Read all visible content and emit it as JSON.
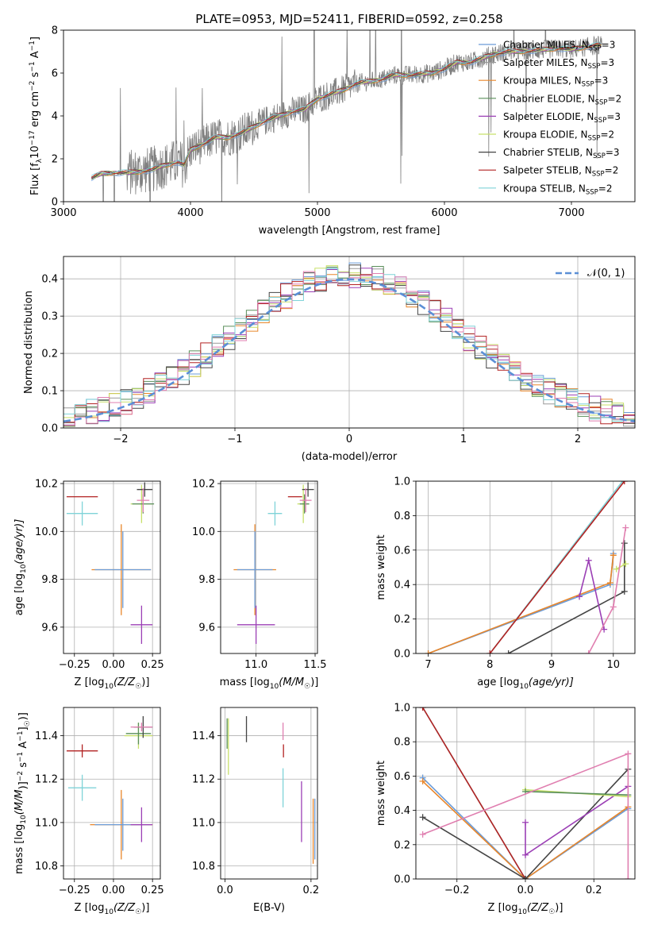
{
  "figure_title": "PLATE=0953, MJD=52411, FIBERID=0592, z=0.258",
  "colors": {
    "chabrier_miles": "#6a9bd8",
    "salpeter_miles": "#999999",
    "kroupa_miles": "#e8862a",
    "chabrier_elodie": "#5a8f5a",
    "salpeter_elodie": "#9b3fb5",
    "kroupa_elodie": "#c8e06a",
    "chabrier_stelib": "#444444",
    "salpeter_stelib": "#b22222",
    "kroupa_stelib": "#7fd3d8",
    "pink": "#e07fb0",
    "data": "#808080",
    "gauss": "#5b8fd6",
    "grid": "#b0b0b0"
  },
  "chart_data": [
    {
      "id": "spectrum",
      "type": "line",
      "title": "PLATE=0953, MJD=52411, FIBERID=0592, z=0.258",
      "xlabel": "wavelength [Angstrom, rest frame]",
      "ylabel": "Flux [f",
      "ylabel_sub": "λ",
      "ylabel_rest": "10",
      "ylabel_exp": "−17",
      "ylabel_end": " erg cm",
      "xlim": [
        3000,
        7500
      ],
      "ylim": [
        0,
        8
      ],
      "xticks": [
        "3000",
        "4000",
        "5000",
        "6000",
        "7000"
      ],
      "yticks": [
        "0",
        "2",
        "4",
        "6",
        "8"
      ],
      "grid": false,
      "legend_position": "top-right",
      "continuum": {
        "x": [
          3220,
          3300,
          3400,
          3500,
          3600,
          3700,
          3800,
          3900,
          3950,
          4000,
          4100,
          4200,
          4300,
          4400,
          4500,
          4600,
          4700,
          4800,
          4900,
          5000,
          5100,
          5200,
          5300,
          5400,
          5500,
          5600,
          5700,
          5800,
          5900,
          6000,
          6100,
          6200,
          6300,
          6400,
          6500,
          6600,
          6700,
          6800,
          6900,
          7000,
          7100,
          7200,
          7240
        ],
        "y": [
          1.1,
          1.3,
          1.35,
          1.35,
          1.4,
          1.5,
          1.7,
          1.85,
          1.7,
          2.4,
          2.7,
          3.0,
          3.0,
          3.2,
          3.5,
          3.8,
          4.0,
          4.2,
          4.3,
          4.8,
          5.0,
          5.2,
          5.5,
          5.6,
          5.7,
          5.9,
          5.9,
          5.95,
          6.0,
          6.2,
          6.5,
          6.5,
          6.7,
          6.9,
          7.0,
          7.0,
          7.05,
          7.1,
          7.15,
          7.1,
          7.2,
          7.3,
          7.3
        ]
      },
      "series": [
        {
          "name": "Chabrier MILES, N",
          "sub": "SSP",
          "suffix": "=3",
          "color_key": "chabrier_miles"
        },
        {
          "name": "Salpeter MILES, N",
          "sub": "SSP",
          "suffix": "=3",
          "color_key": "salpeter_miles"
        },
        {
          "name": "Kroupa MILES, N",
          "sub": "SSP",
          "suffix": "=3",
          "color_key": "kroupa_miles"
        },
        {
          "name": "Chabrier ELODIE, N",
          "sub": "SSP",
          "suffix": "=2",
          "color_key": "chabrier_elodie"
        },
        {
          "name": "Salpeter ELODIE, N",
          "sub": "SSP",
          "suffix": "=3",
          "color_key": "salpeter_elodie"
        },
        {
          "name": "Kroupa ELODIE, N",
          "sub": "SSP",
          "suffix": "=2",
          "color_key": "kroupa_elodie"
        },
        {
          "name": "Chabrier STELIB, N",
          "sub": "SSP",
          "suffix": "=3",
          "color_key": "chabrier_stelib"
        },
        {
          "name": "Salpeter STELIB, N",
          "sub": "SSP",
          "suffix": "=2",
          "color_key": "salpeter_stelib"
        },
        {
          "name": "Kroupa STELIB, N",
          "sub": "SSP",
          "suffix": "=2",
          "color_key": "kroupa_stelib"
        }
      ]
    },
    {
      "id": "residuals",
      "type": "line",
      "xlabel": "(data-model)/error",
      "ylabel": "Normed distribution",
      "xlim": [
        -2.5,
        2.5
      ],
      "ylim": [
        0,
        0.46
      ],
      "xticks": [
        "−2",
        "−1",
        "0",
        "1",
        "2"
      ],
      "yticks": [
        "0.0",
        "0.1",
        "0.2",
        "0.3",
        "0.4"
      ],
      "grid": true,
      "legend_position": "top-right",
      "legend_label": "𝒩(0, 1)",
      "gauss": {
        "mean": 0,
        "sigma": 1
      }
    },
    {
      "id": "age_z",
      "type": "scatter",
      "xlabel": "Z [log",
      "xlabel_sub": "10",
      "xlabel_rest": "(Z/Z",
      "xlabel_sub2": "☉",
      "xlabel_end": ")]",
      "ylabel": "age  [log",
      "ylabel_sub": "10",
      "ylabel_rest": "(age/yr)]",
      "xlim": [
        -0.32,
        0.3
      ],
      "ylim": [
        9.49,
        10.21
      ],
      "xticks": [
        "−0.25",
        "0.00",
        "0.25"
      ],
      "yticks": [
        "9.6",
        "9.8",
        "10.0",
        "10.2"
      ],
      "grid": true,
      "points": [
        {
          "x": -0.2,
          "y": 10.145,
          "xerr": 0.1,
          "yerr": 0.0,
          "color_key": "salpeter_stelib"
        },
        {
          "x": -0.2,
          "y": 10.075,
          "xerr": 0.1,
          "yerr": 0.05,
          "color_key": "kroupa_stelib"
        },
        {
          "x": 0.05,
          "y": 9.84,
          "xerr": 0.19,
          "yerr": 0.19,
          "color_key": "kroupa_miles"
        },
        {
          "x": 0.06,
          "y": 9.84,
          "xerr": 0.18,
          "yerr": 0.16,
          "color_key": "chabrier_miles"
        },
        {
          "x": 0.18,
          "y": 10.115,
          "xerr": 0.07,
          "yerr": 0.08,
          "color_key": "kroupa_elodie"
        },
        {
          "x": 0.19,
          "y": 10.115,
          "xerr": 0.07,
          "yerr": 0.04,
          "color_key": "chabrier_elodie"
        },
        {
          "x": 0.18,
          "y": 9.61,
          "xerr": 0.07,
          "yerr": 0.08,
          "color_key": "salpeter_elodie"
        },
        {
          "x": 0.2,
          "y": 10.175,
          "xerr": 0.05,
          "yerr": 0.03,
          "color_key": "chabrier_stelib"
        },
        {
          "x": 0.19,
          "y": 10.13,
          "xerr": 0.04,
          "yerr": 0.05,
          "color_key": "pink"
        }
      ]
    },
    {
      "id": "age_mass",
      "type": "scatter",
      "xlabel": "mass [log",
      "xlabel_sub": "10",
      "xlabel_rest": "(M/M",
      "xlabel_sub2": "☉",
      "xlabel_end": ")]",
      "xlim": [
        10.7,
        11.52
      ],
      "ylim": [
        9.49,
        10.21
      ],
      "xticks": [
        "11.0",
        "11.5"
      ],
      "yticks": [
        "9.6",
        "9.8",
        "10.0",
        "10.2"
      ],
      "grid": true,
      "points": [
        {
          "x": 11.33,
          "y": 10.145,
          "xerr": 0.06,
          "yerr": 0.0,
          "color_key": "salpeter_stelib"
        },
        {
          "x": 11.16,
          "y": 10.075,
          "xerr": 0.06,
          "yerr": 0.05,
          "color_key": "kroupa_stelib"
        },
        {
          "x": 10.99,
          "y": 9.84,
          "xerr": 0.18,
          "yerr": 0.19,
          "color_key": "kroupa_miles"
        },
        {
          "x": 10.99,
          "y": 9.84,
          "xerr": 0.15,
          "yerr": 0.16,
          "color_key": "chabrier_miles"
        },
        {
          "x": 11.0,
          "y": 9.61,
          "xerr": 0.16,
          "yerr": 0.08,
          "color_key": "salpeter_elodie"
        },
        {
          "x": 11.4,
          "y": 10.115,
          "xerr": 0.05,
          "yerr": 0.08,
          "color_key": "kroupa_elodie"
        },
        {
          "x": 11.41,
          "y": 10.115,
          "xerr": 0.04,
          "yerr": 0.04,
          "color_key": "chabrier_elodie"
        },
        {
          "x": 11.44,
          "y": 10.175,
          "xerr": 0.05,
          "yerr": 0.03,
          "color_key": "chabrier_stelib"
        },
        {
          "x": 11.42,
          "y": 10.13,
          "xerr": 0.05,
          "yerr": 0.05,
          "color_key": "pink"
        }
      ]
    },
    {
      "id": "weight_age",
      "type": "line",
      "xlabel": "age  [log",
      "xlabel_sub": "10",
      "xlabel_rest": "(age/yr)]",
      "ylabel": "mass weight",
      "xlim": [
        6.8,
        10.35
      ],
      "ylim": [
        0,
        1
      ],
      "xticks": [
        "7",
        "8",
        "9",
        "10"
      ],
      "yticks": [
        "0.0",
        "0.2",
        "0.4",
        "0.6",
        "0.8",
        "1.0"
      ],
      "grid": true,
      "series": [
        {
          "color_key": "chabrier_miles",
          "x": [
            7.0,
            9.95,
            10.0
          ],
          "y": [
            0.0,
            0.4,
            0.58
          ]
        },
        {
          "color_key": "kroupa_miles",
          "x": [
            7.0,
            9.95,
            10.0
          ],
          "y": [
            0.0,
            0.41,
            0.57
          ]
        },
        {
          "color_key": "kroupa_stelib",
          "x": [
            8.0,
            10.15
          ],
          "y": [
            0.0,
            1.0
          ]
        },
        {
          "color_key": "salpeter_stelib",
          "x": [
            8.0,
            10.18
          ],
          "y": [
            0.0,
            1.0
          ]
        },
        {
          "color_key": "chabrier_stelib",
          "x": [
            8.3,
            10.18,
            10.18
          ],
          "y": [
            0.0,
            0.36,
            0.64
          ]
        },
        {
          "color_key": "salpeter_elodie",
          "x": [
            9.45,
            9.6,
            9.85
          ],
          "y": [
            0.33,
            0.54,
            0.14
          ]
        },
        {
          "color_key": "kroupa_elodie",
          "x": [
            10.05,
            10.2
          ],
          "y": [
            0.49,
            0.52
          ]
        },
        {
          "color_key": "pink",
          "x": [
            9.6,
            10.0,
            10.2
          ],
          "y": [
            0.0,
            0.27,
            0.73
          ]
        }
      ]
    },
    {
      "id": "mass_z",
      "type": "scatter",
      "xlabel": "Z [log",
      "xlabel_sub": "10",
      "xlabel_rest": "(Z/Z",
      "xlabel_sub2": "☉",
      "xlabel_end": ")]",
      "ylabel": "mass [log",
      "ylabel_sub": "10",
      "ylabel_rest": "(M/M",
      "ylabel_sub2": "☉",
      "ylabel_end": ")]",
      "xlim": [
        -0.32,
        0.3
      ],
      "ylim": [
        10.74,
        11.53
      ],
      "xticks": [
        "−0.25",
        "0.00",
        "0.25"
      ],
      "yticks": [
        "10.8",
        "11.0",
        "11.2",
        "11.4"
      ],
      "grid": true,
      "points": [
        {
          "x": -0.2,
          "y": 11.33,
          "xerr": 0.1,
          "yerr": 0.03,
          "color_key": "salpeter_stelib"
        },
        {
          "x": -0.2,
          "y": 11.16,
          "xerr": 0.09,
          "yerr": 0.06,
          "color_key": "kroupa_stelib"
        },
        {
          "x": 0.05,
          "y": 10.99,
          "xerr": 0.2,
          "yerr": 0.16,
          "color_key": "kroupa_miles"
        },
        {
          "x": 0.06,
          "y": 10.99,
          "xerr": 0.18,
          "yerr": 0.12,
          "color_key": "chabrier_miles"
        },
        {
          "x": 0.18,
          "y": 10.99,
          "xerr": 0.07,
          "yerr": 0.08,
          "color_key": "salpeter_elodie"
        },
        {
          "x": 0.16,
          "y": 11.4,
          "xerr": 0.09,
          "yerr": 0.06,
          "color_key": "kroupa_elodie"
        },
        {
          "x": 0.16,
          "y": 11.41,
          "xerr": 0.08,
          "yerr": 0.05,
          "color_key": "chabrier_elodie"
        },
        {
          "x": 0.19,
          "y": 11.44,
          "xerr": 0.06,
          "yerr": 0.05,
          "color_key": "chabrier_stelib"
        },
        {
          "x": 0.18,
          "y": 11.44,
          "xerr": 0.07,
          "yerr": 0.02,
          "color_key": "pink"
        }
      ]
    },
    {
      "id": "mass_ebv",
      "type": "scatter",
      "xlabel": "E(B-V)",
      "xlim": [
        -0.01,
        0.215
      ],
      "ylim": [
        10.74,
        11.53
      ],
      "xticks": [
        "0.0",
        "0.2"
      ],
      "yticks": [
        "10.8",
        "11.0",
        "11.2",
        "11.4"
      ],
      "grid": true,
      "points": [
        {
          "x": 0.005,
          "y": 11.41,
          "xerr": 0,
          "yerr": 0.07,
          "color_key": "chabrier_elodie"
        },
        {
          "x": 0.008,
          "y": 11.35,
          "xerr": 0,
          "yerr": 0.13,
          "color_key": "kroupa_elodie"
        },
        {
          "x": 0.05,
          "y": 11.43,
          "xerr": 0,
          "yerr": 0.06,
          "color_key": "chabrier_stelib"
        },
        {
          "x": 0.135,
          "y": 11.42,
          "xerr": 0,
          "yerr": 0.04,
          "color_key": "pink"
        },
        {
          "x": 0.136,
          "y": 11.33,
          "xerr": 0,
          "yerr": 0.03,
          "color_key": "salpeter_stelib"
        },
        {
          "x": 0.135,
          "y": 11.16,
          "xerr": 0,
          "yerr": 0.09,
          "color_key": "kroupa_stelib"
        },
        {
          "x": 0.178,
          "y": 11.05,
          "xerr": 0,
          "yerr": 0.14,
          "color_key": "salpeter_elodie"
        },
        {
          "x": 0.205,
          "y": 10.96,
          "xerr": 0,
          "yerr": 0.15,
          "color_key": "kroupa_miles"
        },
        {
          "x": 0.209,
          "y": 10.97,
          "xerr": 0,
          "yerr": 0.14,
          "color_key": "chabrier_miles"
        }
      ]
    },
    {
      "id": "weight_z",
      "type": "line",
      "xlabel": "Z [log",
      "xlabel_sub": "10",
      "xlabel_rest": "(Z/Z",
      "xlabel_sub2": "☉",
      "xlabel_end": ")]",
      "ylabel": "mass weight",
      "xlim": [
        -0.32,
        0.32
      ],
      "ylim": [
        0,
        1
      ],
      "xticks": [
        "−0.2",
        "0.0",
        "0.2"
      ],
      "yticks": [
        "0.0",
        "0.2",
        "0.4",
        "0.6",
        "0.8",
        "1.0"
      ],
      "grid": true,
      "series": [
        {
          "color_key": "chabrier_miles",
          "x": [
            -0.3,
            0.0,
            0.3
          ],
          "y": [
            0.59,
            0.0,
            0.41
          ]
        },
        {
          "color_key": "kroupa_miles",
          "x": [
            -0.3,
            0.0,
            0.3
          ],
          "y": [
            0.57,
            0.0,
            0.42
          ]
        },
        {
          "color_key": "kroupa_stelib",
          "x": [
            -0.3,
            0.0
          ],
          "y": [
            1.0,
            0.0
          ]
        },
        {
          "color_key": "salpeter_stelib",
          "x": [
            -0.3,
            0.0
          ],
          "y": [
            1.0,
            0.0
          ]
        },
        {
          "color_key": "chabrier_stelib",
          "x": [
            -0.3,
            0.0,
            0.3
          ],
          "y": [
            0.36,
            0.0,
            0.64
          ]
        },
        {
          "color_key": "salpeter_elodie",
          "x": [
            0.0,
            0.0,
            0.3
          ],
          "y": [
            0.33,
            0.14,
            0.54
          ]
        },
        {
          "color_key": "kroupa_elodie",
          "x": [
            0.0,
            0.3
          ],
          "y": [
            0.52,
            0.48
          ]
        },
        {
          "color_key": "chabrier_elodie",
          "x": [
            0.0,
            0.3
          ],
          "y": [
            0.51,
            0.49
          ]
        },
        {
          "color_key": "pink",
          "x": [
            -0.3,
            0.3,
            0.3
          ],
          "y": [
            0.26,
            0.73,
            0.0
          ]
        }
      ]
    }
  ]
}
